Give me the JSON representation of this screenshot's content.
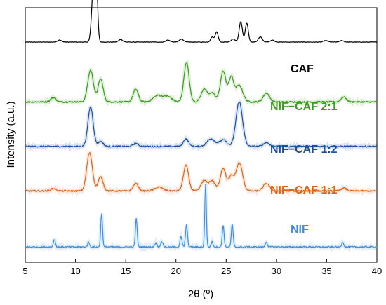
{
  "chart_data": {
    "type": "line",
    "xlabel": "2θ (º)",
    "ylabel": "Intensity (a.u.)",
    "xlim": [
      5,
      40
    ],
    "x_ticks": [
      "5",
      "10",
      "15",
      "20",
      "25",
      "30",
      "35",
      "40"
    ],
    "y_ticks_shown": false,
    "grid": false,
    "legend": "labels placed next to each trace",
    "series": [
      {
        "name": "CAF",
        "color": "#000000",
        "baseline": 0.865,
        "peaks": [
          [
            8.4,
            0.008,
            0.2
          ],
          [
            11.8,
            0.22,
            0.18
          ],
          [
            12.05,
            0.25,
            0.14
          ],
          [
            14.5,
            0.01,
            0.2
          ],
          [
            19.2,
            0.008,
            0.2
          ],
          [
            20.55,
            0.012,
            0.2
          ],
          [
            23.6,
            0.02,
            0.15
          ],
          [
            24.05,
            0.04,
            0.15
          ],
          [
            25.7,
            0.012,
            0.2
          ],
          [
            26.45,
            0.08,
            0.16
          ],
          [
            27.05,
            0.075,
            0.15
          ],
          [
            28.4,
            0.02,
            0.2
          ],
          [
            29.6,
            0.008,
            0.2
          ],
          [
            34.9,
            0.006,
            0.2
          ],
          [
            36.5,
            0.006,
            0.2
          ]
        ]
      },
      {
        "name": "NIF−CAF 2:1",
        "color": "#3a9a1e",
        "baseline": 0.63,
        "peaks": [
          [
            7.8,
            0.018,
            0.25
          ],
          [
            11.5,
            0.125,
            0.28
          ],
          [
            12.5,
            0.09,
            0.25
          ],
          [
            16.0,
            0.05,
            0.25
          ],
          [
            18.2,
            0.025,
            0.45
          ],
          [
            19.2,
            0.02,
            0.4
          ],
          [
            21.05,
            0.155,
            0.26
          ],
          [
            22.8,
            0.05,
            0.3
          ],
          [
            23.6,
            0.035,
            0.3
          ],
          [
            24.7,
            0.12,
            0.28
          ],
          [
            25.5,
            0.095,
            0.25
          ],
          [
            26.3,
            0.065,
            0.35
          ],
          [
            29.0,
            0.035,
            0.3
          ],
          [
            36.7,
            0.02,
            0.25
          ]
        ]
      },
      {
        "name": "NIF−CAF 1:2",
        "color": "#1a4f9e",
        "baseline": 0.455,
        "peaks": [
          [
            11.5,
            0.155,
            0.26
          ],
          [
            12.5,
            0.02,
            0.25
          ],
          [
            16.0,
            0.012,
            0.25
          ],
          [
            21.0,
            0.03,
            0.25
          ],
          [
            23.5,
            0.03,
            0.4
          ],
          [
            24.7,
            0.025,
            0.35
          ],
          [
            26.3,
            0.175,
            0.33
          ],
          [
            29.0,
            0.015,
            0.3
          ]
        ]
      },
      {
        "name": "NIF−CAF 1:1",
        "color": "#d8661e",
        "baseline": 0.28,
        "peaks": [
          [
            7.8,
            0.01,
            0.25
          ],
          [
            11.4,
            0.15,
            0.28
          ],
          [
            12.5,
            0.055,
            0.25
          ],
          [
            16.0,
            0.03,
            0.25
          ],
          [
            18.3,
            0.015,
            0.4
          ],
          [
            21.0,
            0.1,
            0.26
          ],
          [
            22.8,
            0.04,
            0.3
          ],
          [
            23.6,
            0.04,
            0.3
          ],
          [
            24.7,
            0.09,
            0.28
          ],
          [
            25.5,
            0.055,
            0.25
          ],
          [
            26.3,
            0.11,
            0.33
          ],
          [
            29.0,
            0.03,
            0.3
          ],
          [
            36.7,
            0.012,
            0.25
          ]
        ]
      },
      {
        "name": "NIF",
        "color": "#3a8fe0",
        "baseline": 0.06,
        "peaks": [
          [
            7.9,
            0.03,
            0.1
          ],
          [
            11.3,
            0.018,
            0.1
          ],
          [
            12.6,
            0.13,
            0.09
          ],
          [
            16.05,
            0.11,
            0.09
          ],
          [
            18.0,
            0.015,
            0.12
          ],
          [
            18.6,
            0.02,
            0.12
          ],
          [
            20.5,
            0.04,
            0.1
          ],
          [
            21.05,
            0.085,
            0.1
          ],
          [
            22.95,
            0.245,
            0.08
          ],
          [
            23.6,
            0.02,
            0.1
          ],
          [
            24.7,
            0.085,
            0.09
          ],
          [
            25.6,
            0.09,
            0.09
          ],
          [
            29.0,
            0.02,
            0.1
          ],
          [
            36.6,
            0.02,
            0.1
          ]
        ]
      }
    ]
  },
  "labels": {
    "caf": "CAF",
    "nif_caf_21": "NIF−CAF 2:1",
    "nif_caf_12": "NIF−CAF 1:2",
    "nif_caf_11": "NIF−CAF 1:1",
    "nif": "NIF"
  }
}
